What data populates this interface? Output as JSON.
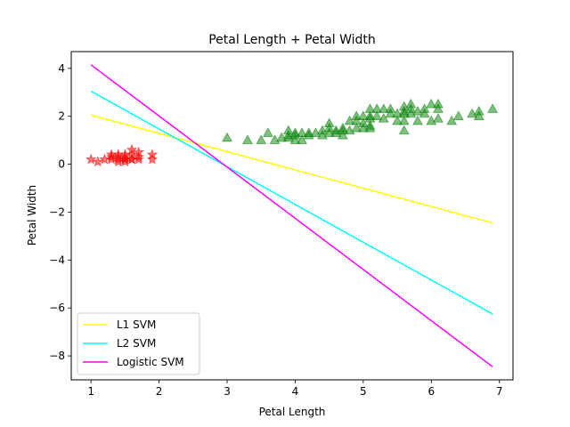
{
  "chart_data": {
    "type": "scatter",
    "title": "Petal Length + Petal Width",
    "xlabel": "Petal Length",
    "ylabel": "Petal Width",
    "xlim": [
      0.71,
      7.2
    ],
    "ylim": [
      -9.0,
      4.7
    ],
    "xticks": [
      1,
      2,
      3,
      4,
      5,
      6,
      7
    ],
    "yticks": [
      4,
      2,
      0,
      -2,
      -4,
      -6,
      -8
    ],
    "grid": false,
    "legend_position": "lower-left",
    "scatter_series": [
      {
        "marker": "star",
        "color": "#ff0000",
        "points": [
          [
            1.0,
            0.2
          ],
          [
            1.1,
            0.1
          ],
          [
            1.2,
            0.2
          ],
          [
            1.3,
            0.2
          ],
          [
            1.3,
            0.3
          ],
          [
            1.3,
            0.4
          ],
          [
            1.4,
            0.2
          ],
          [
            1.4,
            0.3
          ],
          [
            1.4,
            0.1
          ],
          [
            1.5,
            0.2
          ],
          [
            1.5,
            0.4
          ],
          [
            1.5,
            0.1
          ],
          [
            1.5,
            0.3
          ],
          [
            1.6,
            0.2
          ],
          [
            1.6,
            0.4
          ],
          [
            1.6,
            0.6
          ],
          [
            1.7,
            0.5
          ],
          [
            1.7,
            0.3
          ],
          [
            1.7,
            0.2
          ],
          [
            1.9,
            0.2
          ],
          [
            1.9,
            0.4
          ],
          [
            1.4,
            0.4
          ],
          [
            1.5,
            0.2
          ],
          [
            1.6,
            0.2
          ]
        ]
      },
      {
        "marker": "triangle",
        "color": "#008000",
        "points": [
          [
            3.0,
            1.1
          ],
          [
            3.3,
            1.0
          ],
          [
            3.5,
            1.0
          ],
          [
            3.6,
            1.3
          ],
          [
            3.7,
            1.0
          ],
          [
            3.8,
            1.1
          ],
          [
            3.9,
            1.1
          ],
          [
            3.9,
            1.2
          ],
          [
            3.9,
            1.4
          ],
          [
            4.0,
            1.0
          ],
          [
            4.0,
            1.2
          ],
          [
            4.0,
            1.3
          ],
          [
            4.1,
            1.0
          ],
          [
            4.1,
            1.3
          ],
          [
            4.2,
            1.2
          ],
          [
            4.2,
            1.3
          ],
          [
            4.3,
            1.3
          ],
          [
            4.4,
            1.2
          ],
          [
            4.4,
            1.4
          ],
          [
            4.5,
            1.5
          ],
          [
            4.5,
            1.3
          ],
          [
            4.5,
            1.7
          ],
          [
            4.6,
            1.3
          ],
          [
            4.6,
            1.4
          ],
          [
            4.7,
            1.4
          ],
          [
            4.7,
            1.2
          ],
          [
            4.7,
            1.5
          ],
          [
            4.8,
            1.8
          ],
          [
            4.8,
            1.4
          ],
          [
            4.9,
            1.5
          ],
          [
            4.9,
            1.8
          ],
          [
            4.9,
            2.0
          ],
          [
            5.0,
            1.7
          ],
          [
            5.0,
            1.5
          ],
          [
            5.0,
            2.0
          ],
          [
            5.1,
            1.6
          ],
          [
            5.1,
            1.9
          ],
          [
            5.1,
            2.0
          ],
          [
            5.1,
            2.3
          ],
          [
            5.1,
            1.5
          ],
          [
            5.2,
            2.0
          ],
          [
            5.2,
            2.3
          ],
          [
            5.3,
            1.9
          ],
          [
            5.3,
            2.3
          ],
          [
            5.4,
            2.1
          ],
          [
            5.4,
            2.3
          ],
          [
            5.5,
            1.8
          ],
          [
            5.5,
            2.1
          ],
          [
            5.6,
            1.8
          ],
          [
            5.6,
            2.1
          ],
          [
            5.6,
            2.4
          ],
          [
            5.6,
            2.2
          ],
          [
            5.6,
            1.4
          ],
          [
            5.7,
            2.3
          ],
          [
            5.7,
            2.1
          ],
          [
            5.7,
            2.5
          ],
          [
            5.8,
            1.8
          ],
          [
            5.8,
            2.2
          ],
          [
            5.9,
            2.1
          ],
          [
            5.9,
            2.3
          ],
          [
            6.0,
            1.8
          ],
          [
            6.0,
            2.5
          ],
          [
            6.1,
            1.9
          ],
          [
            6.1,
            2.3
          ],
          [
            6.1,
            2.5
          ],
          [
            6.3,
            1.8
          ],
          [
            6.4,
            2.0
          ],
          [
            6.6,
            2.1
          ],
          [
            6.7,
            2.0
          ],
          [
            6.7,
            2.2
          ],
          [
            6.9,
            2.3
          ]
        ]
      }
    ],
    "series": [
      {
        "name": "L1 SVM",
        "color": "#ffff00",
        "x": [
          1.0,
          6.9
        ],
        "y": [
          2.05,
          -2.45
        ]
      },
      {
        "name": "L2 SVM",
        "color": "#00ffff",
        "x": [
          1.0,
          6.9
        ],
        "y": [
          3.05,
          -6.25
        ]
      },
      {
        "name": "Logistic SVM",
        "color": "#ff00ff",
        "x": [
          1.0,
          6.9
        ],
        "y": [
          4.15,
          -8.45
        ]
      }
    ]
  }
}
